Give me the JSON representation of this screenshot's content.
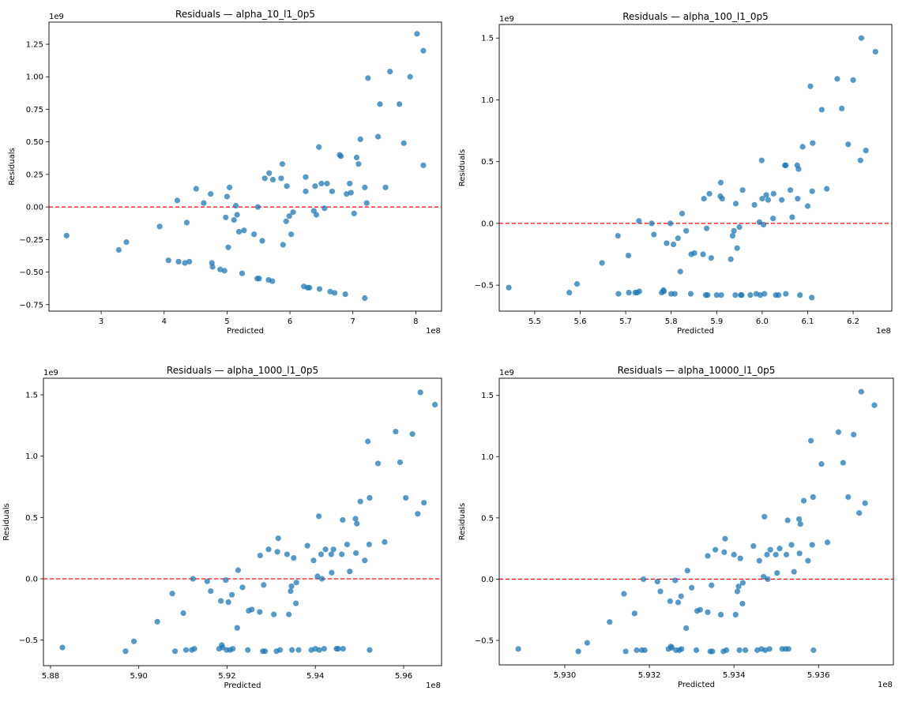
{
  "chart_data": [
    {
      "type": "scatter",
      "title": "Residuals — alpha_10_l1_0p5",
      "xlabel": "Predicted",
      "ylabel": "Residuals",
      "x_offset_label": "1e8",
      "y_offset_label": "1e9",
      "xlim": [
        2.17,
        8.41
      ],
      "ylim": [
        -0.8,
        1.42
      ],
      "xticks": [
        3,
        4,
        5,
        6,
        7,
        8
      ],
      "xtick_labels": [
        "3",
        "4",
        "5",
        "6",
        "7",
        "8"
      ],
      "yticks": [
        -0.75,
        -0.5,
        -0.25,
        0.0,
        0.25,
        0.5,
        0.75,
        1.0,
        1.25
      ],
      "ytick_labels": [
        "−0.75",
        "−0.50",
        "−0.25",
        "0.00",
        "0.25",
        "0.50",
        "0.75",
        "1.00",
        "1.25"
      ],
      "reference_line": {
        "y": 0,
        "color": "#ff0000",
        "style": "dashed"
      },
      "point_color": "#1f77b4",
      "grid": false,
      "x": [
        2.45,
        3.28,
        3.4,
        3.93,
        4.07,
        4.21,
        4.23,
        4.33,
        4.36,
        4.4,
        4.51,
        4.63,
        4.74,
        4.76,
        4.77,
        4.89,
        4.96,
        4.98,
        5.0,
        5.02,
        5.04,
        5.11,
        5.14,
        5.16,
        5.19,
        5.24,
        5.27,
        5.43,
        5.48,
        5.49,
        5.51,
        5.56,
        5.6,
        5.66,
        5.67,
        5.72,
        5.73,
        5.86,
        5.88,
        5.89,
        5.94,
        5.95,
        5.99,
        6.02,
        6.05,
        6.22,
        6.25,
        6.25,
        6.28,
        6.31,
        6.38,
        6.4,
        6.42,
        6.46,
        6.47,
        6.5,
        6.55,
        6.59,
        6.64,
        6.67,
        6.71,
        6.79,
        6.81,
        6.88,
        6.9,
        6.95,
        6.97,
        7.02,
        7.06,
        7.09,
        7.12,
        7.19,
        7.19,
        7.22,
        7.24,
        7.4,
        7.43,
        7.52,
        7.59,
        7.74,
        7.81,
        7.91,
        8.02,
        8.12,
        8.12
      ],
      "y": [
        -0.22,
        -0.33,
        -0.27,
        -0.15,
        -0.41,
        0.05,
        -0.42,
        -0.43,
        -0.12,
        -0.42,
        0.14,
        0.03,
        0.1,
        -0.43,
        -0.46,
        -0.48,
        -0.49,
        -0.08,
        0.08,
        -0.31,
        0.15,
        -0.1,
        0.01,
        -0.06,
        -0.19,
        -0.51,
        -0.18,
        -0.21,
        -0.55,
        0.0,
        -0.55,
        -0.26,
        0.22,
        -0.56,
        0.26,
        -0.57,
        0.21,
        0.22,
        0.33,
        -0.29,
        -0.11,
        0.16,
        -0.07,
        -0.21,
        -0.04,
        -0.61,
        0.23,
        0.12,
        -0.62,
        -0.62,
        -0.03,
        0.16,
        -0.06,
        0.46,
        -0.63,
        0.18,
        -0.01,
        0.18,
        -0.65,
        0.12,
        -0.66,
        0.4,
        0.39,
        -0.67,
        0.1,
        0.18,
        0.11,
        -0.05,
        0.38,
        0.33,
        0.52,
        -0.7,
        0.15,
        0.03,
        0.99,
        0.54,
        0.79,
        0.15,
        1.04,
        0.79,
        0.49,
        1.0,
        1.33,
        0.32,
        1.2
      ]
    },
    {
      "type": "scatter",
      "title": "Residuals — alpha_100_l1_0p5",
      "xlabel": "Predicted",
      "ylabel": "Residuals",
      "x_offset_label": "1e8",
      "y_offset_label": "1e9",
      "xlim": [
        5.422,
        6.285
      ],
      "ylim": [
        -0.71,
        1.61
      ],
      "xticks": [
        5.5,
        5.6,
        5.7,
        5.8,
        5.9,
        6.0,
        6.1,
        6.2
      ],
      "xtick_labels": [
        "5.5",
        "5.6",
        "5.7",
        "5.8",
        "5.9",
        "6.0",
        "6.1",
        "6.2"
      ],
      "yticks": [
        -0.5,
        0.0,
        0.5,
        1.0,
        1.5
      ],
      "ytick_labels": [
        "−0.5",
        "0.0",
        "0.5",
        "1.0",
        "1.5"
      ],
      "reference_line": {
        "y": 0,
        "color": "#ff0000",
        "style": "dashed"
      },
      "point_color": "#1f77b4",
      "grid": false,
      "x": [
        5.443,
        5.576,
        5.593,
        5.648,
        5.683,
        5.684,
        5.706,
        5.707,
        5.721,
        5.725,
        5.729,
        5.73,
        5.757,
        5.762,
        5.779,
        5.783,
        5.784,
        5.79,
        5.798,
        5.8,
        5.805,
        5.808,
        5.815,
        5.82,
        5.824,
        5.833,
        5.843,
        5.844,
        5.851,
        5.87,
        5.872,
        5.876,
        5.878,
        5.88,
        5.884,
        5.888,
        5.9,
        5.908,
        5.909,
        5.91,
        5.912,
        5.931,
        5.935,
        5.938,
        5.941,
        5.942,
        5.945,
        5.95,
        5.953,
        5.955,
        5.957,
        5.974,
        5.983,
        5.987,
        5.994,
        5.996,
        5.999,
        6.0,
        6.003,
        6.005,
        6.009,
        6.013,
        6.024,
        6.025,
        6.03,
        6.036,
        6.043,
        6.05,
        6.052,
        6.052,
        6.062,
        6.066,
        6.077,
        6.078,
        6.08,
        6.083,
        6.089,
        6.1,
        6.106,
        6.109,
        6.11,
        6.111,
        6.131,
        6.142,
        6.165,
        6.175,
        6.189,
        6.2,
        6.216,
        6.218,
        6.228,
        6.249
      ],
      "y": [
        -0.52,
        -0.56,
        -0.49,
        -0.32,
        -0.1,
        -0.57,
        -0.26,
        -0.56,
        -0.56,
        -0.56,
        0.02,
        -0.55,
        0.0,
        -0.09,
        -0.56,
        -0.54,
        -0.55,
        -0.16,
        0.0,
        -0.57,
        -0.17,
        -0.57,
        -0.12,
        -0.39,
        0.08,
        -0.06,
        -0.57,
        -0.25,
        -0.24,
        -0.25,
        0.2,
        -0.58,
        -0.04,
        -0.58,
        0.24,
        -0.28,
        -0.58,
        0.22,
        0.33,
        -0.58,
        0.2,
        -0.29,
        -0.1,
        -0.06,
        -0.58,
        0.16,
        -0.2,
        -0.03,
        -0.58,
        -0.58,
        0.27,
        -0.58,
        0.15,
        -0.57,
        0.01,
        -0.58,
        0.51,
        0.2,
        -0.01,
        -0.57,
        0.23,
        0.19,
        0.04,
        0.24,
        -0.58,
        -0.58,
        0.19,
        0.47,
        0.47,
        -0.57,
        0.27,
        0.05,
        0.47,
        0.2,
        0.44,
        -0.58,
        0.62,
        0.14,
        1.11,
        -0.6,
        0.26,
        0.65,
        0.92,
        0.28,
        1.17,
        0.93,
        0.64,
        1.16,
        0.51,
        1.5,
        0.59,
        1.39
      ]
    },
    {
      "type": "scatter",
      "title": "Residuals — alpha_1000_l1_0p5",
      "xlabel": "Predicted",
      "ylabel": "Residuals",
      "x_offset_label": "1e8",
      "y_offset_label": "1e9",
      "xlim": [
        5.8784,
        5.9686
      ],
      "ylim": [
        -0.708,
        1.635
      ],
      "xticks": [
        5.88,
        5.9,
        5.92,
        5.94,
        5.96
      ],
      "xtick_labels": [
        "5.88",
        "5.90",
        "5.92",
        "5.94",
        "5.96"
      ],
      "yticks": [
        -0.5,
        0.0,
        0.5,
        1.0,
        1.5
      ],
      "ytick_labels": [
        "−0.5",
        "0.0",
        "0.5",
        "1.0",
        "1.5"
      ],
      "reference_line": {
        "y": 0,
        "color": "#ff0000",
        "style": "dashed"
      },
      "point_color": "#1f77b4",
      "grid": false,
      "x": [
        5.8827,
        5.897,
        5.8989,
        5.9042,
        5.9076,
        5.9082,
        5.9101,
        5.9107,
        5.912,
        5.9123,
        5.9126,
        5.9155,
        5.9163,
        5.9182,
        5.9186,
        5.9188,
        5.919,
        5.9197,
        5.9199,
        5.9203,
        5.9207,
        5.9211,
        5.9213,
        5.9223,
        5.9225,
        5.9235,
        5.9247,
        5.9249,
        5.9256,
        5.9274,
        5.9275,
        5.9281,
        5.9283,
        5.9286,
        5.9294,
        5.9306,
        5.9312,
        5.9314,
        5.9316,
        5.932,
        5.9336,
        5.934,
        5.9344,
        5.9346,
        5.9347,
        5.9351,
        5.9356,
        5.9357,
        5.9362,
        5.9382,
        5.9391,
        5.9396,
        5.94,
        5.9405,
        5.9408,
        5.9409,
        5.9413,
        5.9415,
        5.942,
        5.9423,
        5.9436,
        5.9437,
        5.9441,
        5.9448,
        5.9452,
        5.946,
        5.9462,
        5.9463,
        5.9472,
        5.9478,
        5.9491,
        5.9492,
        5.9494,
        5.9502,
        5.9512,
        5.9519,
        5.9522,
        5.9523,
        5.9523,
        5.9542,
        5.9557,
        5.9582,
        5.9592,
        5.9605,
        5.962,
        5.9632,
        5.9638,
        5.9646,
        5.9671
      ],
      "y": [
        -0.56,
        -0.59,
        -0.51,
        -0.35,
        -0.12,
        -0.59,
        -0.28,
        -0.58,
        -0.58,
        0.0,
        -0.57,
        -0.02,
        -0.1,
        -0.57,
        -0.18,
        -0.54,
        -0.56,
        -0.01,
        -0.58,
        -0.19,
        -0.58,
        -0.13,
        -0.57,
        -0.4,
        0.07,
        -0.07,
        -0.58,
        -0.26,
        -0.25,
        -0.27,
        0.19,
        -0.59,
        -0.05,
        -0.59,
        0.24,
        -0.29,
        -0.59,
        0.22,
        0.33,
        -0.58,
        0.2,
        -0.29,
        -0.1,
        -0.06,
        -0.58,
        0.17,
        -0.2,
        -0.03,
        -0.58,
        0.27,
        -0.58,
        0.15,
        -0.57,
        0.02,
        0.51,
        -0.58,
        0.2,
        0.0,
        -0.57,
        0.24,
        0.2,
        0.05,
        0.24,
        -0.57,
        -0.57,
        0.2,
        0.48,
        -0.57,
        0.28,
        0.06,
        0.49,
        0.21,
        0.45,
        0.63,
        0.15,
        1.12,
        0.28,
        0.66,
        -0.58,
        0.94,
        0.3,
        1.2,
        0.95,
        0.66,
        1.18,
        0.53,
        1.52,
        0.62,
        1.42
      ]
    },
    {
      "type": "scatter",
      "title": "Residuals — alpha_10000_l1_0p5",
      "xlabel": "Predicted",
      "ylabel": "Residuals",
      "x_offset_label": "1e8",
      "y_offset_label": "1e9",
      "xlim": [
        5.92845,
        5.93777
      ],
      "ylim": [
        -0.7,
        1.64
      ],
      "xticks": [
        5.93,
        5.932,
        5.934,
        5.936
      ],
      "xtick_labels": [
        "5.930",
        "5.932",
        "5.934",
        "5.936"
      ],
      "yticks": [
        -0.5,
        0.0,
        0.5,
        1.0,
        1.5
      ],
      "ytick_labels": [
        "−0.5",
        "0.0",
        "0.5",
        "1.0",
        "1.5"
      ],
      "reference_line": {
        "y": 0,
        "color": "#ff0000",
        "style": "dashed"
      },
      "point_color": "#1f77b4",
      "grid": false,
      "x": [
        5.9289,
        5.93032,
        5.93053,
        5.93106,
        5.9314,
        5.93144,
        5.93165,
        5.9317,
        5.93182,
        5.93186,
        5.93189,
        5.93219,
        5.93226,
        5.93245,
        5.93249,
        5.93251,
        5.93253,
        5.93261,
        5.93263,
        5.93268,
        5.93271,
        5.93275,
        5.93276,
        5.93287,
        5.9329,
        5.933,
        5.93311,
        5.93313,
        5.9332,
        5.93338,
        5.93338,
        5.93344,
        5.93347,
        5.93349,
        5.93356,
        5.93369,
        5.93375,
        5.93377,
        5.93379,
        5.93382,
        5.934,
        5.93404,
        5.93408,
        5.93411,
        5.93413,
        5.93415,
        5.9342,
        5.93421,
        5.93427,
        5.93446,
        5.93455,
        5.9346,
        5.93465,
        5.9347,
        5.93472,
        5.93474,
        5.93478,
        5.9348,
        5.93484,
        5.93486,
        5.93499,
        5.93502,
        5.93508,
        5.93514,
        5.93522,
        5.93524,
        5.93527,
        5.93529,
        5.93536,
        5.93542,
        5.93554,
        5.93555,
        5.93557,
        5.93565,
        5.93575,
        5.93582,
        5.93585,
        5.93587,
        5.93588,
        5.93607,
        5.93621,
        5.93647,
        5.93658,
        5.9367,
        5.93683,
        5.93696,
        5.93701,
        5.9371,
        5.93732
      ],
      "y": [
        -0.57,
        -0.59,
        -0.52,
        -0.35,
        -0.12,
        -0.59,
        -0.28,
        -0.58,
        -0.58,
        0.0,
        -0.58,
        -0.02,
        -0.1,
        -0.57,
        -0.18,
        -0.55,
        -0.56,
        -0.01,
        -0.58,
        -0.19,
        -0.58,
        -0.14,
        -0.57,
        -0.4,
        0.07,
        -0.07,
        -0.58,
        -0.26,
        -0.25,
        -0.27,
        0.19,
        -0.59,
        -0.05,
        -0.59,
        0.24,
        -0.29,
        -0.59,
        0.22,
        0.33,
        -0.58,
        0.2,
        -0.29,
        -0.1,
        -0.06,
        -0.58,
        0.17,
        -0.2,
        -0.03,
        -0.58,
        0.27,
        -0.58,
        0.15,
        -0.57,
        0.02,
        0.51,
        -0.58,
        0.2,
        0.0,
        -0.57,
        0.24,
        0.2,
        0.05,
        0.25,
        -0.57,
        -0.57,
        0.2,
        0.48,
        -0.57,
        0.28,
        0.06,
        0.49,
        0.21,
        0.45,
        0.64,
        0.15,
        1.13,
        0.28,
        0.67,
        -0.58,
        0.94,
        0.3,
        1.2,
        0.95,
        0.67,
        1.18,
        0.54,
        1.53,
        0.62,
        1.42
      ]
    }
  ]
}
